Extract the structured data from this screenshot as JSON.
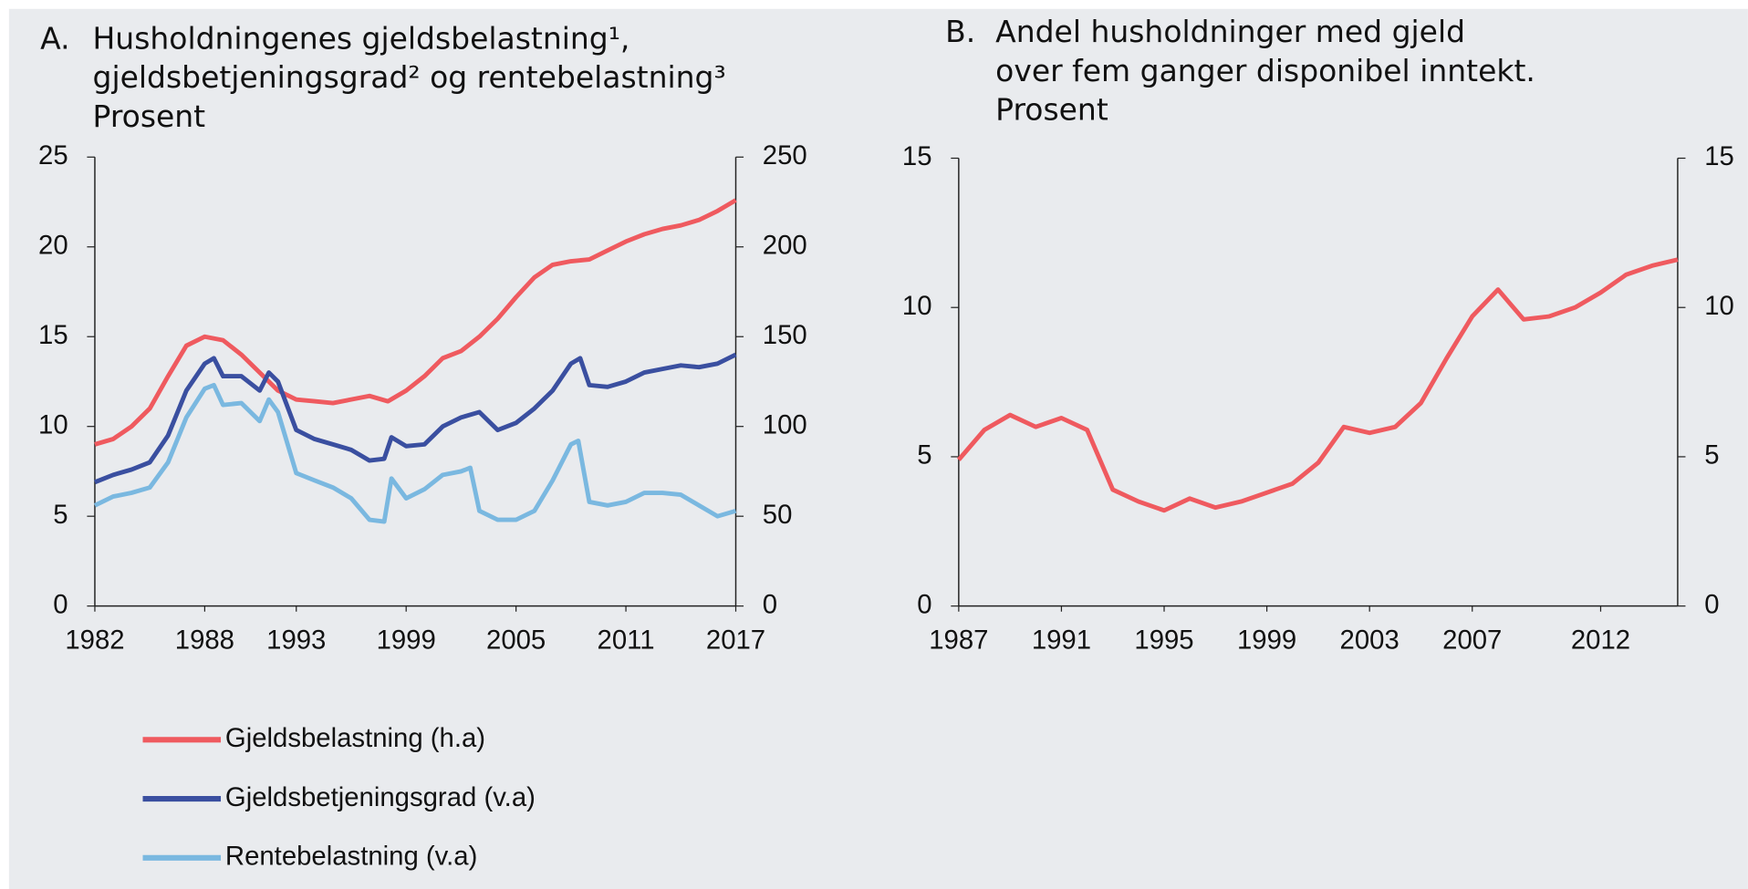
{
  "chart_data": [
    {
      "type": "line",
      "panel": "A.",
      "title": [
        "Husholdningenes gjeldsbelastning¹,",
        "gjeldsbetjeningsgrad² og rentebelastning³",
        "Prosent"
      ],
      "xlim": [
        1982,
        2017
      ],
      "xticks": [
        1982,
        1988,
        1993,
        1999,
        2005,
        2011,
        2017
      ],
      "ylim": [
        0,
        25
      ],
      "yticks": [
        0,
        5,
        10,
        15,
        20,
        25
      ],
      "y2lim": [
        0,
        250
      ],
      "y2ticks": [
        0,
        50,
        100,
        150,
        200,
        250
      ],
      "legend": "bottom",
      "series": [
        {
          "name": "Gjeldsbelastning (h.a)",
          "color": "#ef5a5f",
          "axis": "y2",
          "x": [
            1982,
            1983,
            1984,
            1985,
            1986,
            1987,
            1988,
            1989,
            1990,
            1991,
            1992,
            1993,
            1994,
            1995,
            1996,
            1997,
            1998,
            1999,
            2000,
            2001,
            2002,
            2003,
            2004,
            2005,
            2006,
            2007,
            2008,
            2009,
            2010,
            2011,
            2012,
            2013,
            2014,
            2015,
            2016,
            2017
          ],
          "values": [
            90,
            93,
            100,
            110,
            128,
            145,
            150,
            148,
            140,
            130,
            120,
            115,
            114,
            113,
            115,
            117,
            114,
            120,
            128,
            138,
            142,
            150,
            160,
            172,
            183,
            190,
            192,
            193,
            198,
            203,
            207,
            210,
            212,
            215,
            220,
            226
          ]
        },
        {
          "name": "Gjeldsbetjeningsgrad (v.a)",
          "color": "#3a4fa0",
          "x": [
            1982,
            1983,
            1984,
            1985,
            1986,
            1987,
            1988,
            1988.5,
            1989,
            1990,
            1991,
            1991.5,
            1992,
            1993,
            1994,
            1995,
            1996,
            1997,
            1997.8,
            1998.2,
            1999,
            2000,
            2001,
            2002,
            2003,
            2004,
            2005,
            2006,
            2007,
            2008,
            2008.5,
            2009,
            2010,
            2011,
            2012,
            2013,
            2014,
            2015,
            2016,
            2017
          ],
          "values": [
            6.9,
            7.3,
            7.6,
            8,
            9.5,
            12,
            13.5,
            13.8,
            12.8,
            12.8,
            12,
            13,
            12.5,
            9.8,
            9.3,
            9,
            8.7,
            8.1,
            8.2,
            9.4,
            8.9,
            9,
            10,
            10.5,
            10.8,
            9.8,
            10.2,
            11,
            12,
            13.5,
            13.8,
            12.3,
            12.2,
            12.5,
            13,
            13.2,
            13.4,
            13.3,
            13.5,
            14
          ]
        },
        {
          "name": "Rentebelastning (v.a)",
          "color": "#7ab8e0",
          "x": [
            1982,
            1983,
            1984,
            1985,
            1986,
            1987,
            1988,
            1988.5,
            1989,
            1990,
            1991,
            1991.5,
            1992,
            1993,
            1994,
            1995,
            1996,
            1997,
            1997.8,
            1998.2,
            1999,
            2000,
            2001,
            2002,
            2002.5,
            2003,
            2004,
            2005,
            2006,
            2007,
            2008,
            2008.4,
            2009,
            2010,
            2011,
            2012,
            2013,
            2014,
            2015,
            2016,
            2017
          ],
          "values": [
            5.6,
            6.1,
            6.3,
            6.6,
            8,
            10.5,
            12.1,
            12.3,
            11.2,
            11.3,
            10.3,
            11.5,
            10.8,
            7.4,
            7,
            6.6,
            6,
            4.8,
            4.7,
            7.1,
            6,
            6.5,
            7.3,
            7.5,
            7.7,
            5.3,
            4.8,
            4.8,
            5.3,
            7,
            9,
            9.2,
            5.8,
            5.6,
            5.8,
            6.3,
            6.3,
            6.2,
            5.6,
            5,
            5.3
          ]
        }
      ]
    },
    {
      "type": "line",
      "panel": "B.",
      "title": [
        "Andel husholdninger med gjeld",
        "over fem ganger disponibel inntekt.",
        "Prosent"
      ],
      "xlim": [
        1987,
        2015
      ],
      "xticks": [
        1987,
        1991,
        1995,
        1999,
        2003,
        2007,
        2012
      ],
      "ylim": [
        0,
        15
      ],
      "yticks": [
        0,
        5,
        10,
        15
      ],
      "y2lim": [
        0,
        15
      ],
      "y2ticks": [
        0,
        5,
        10,
        15
      ],
      "series": [
        {
          "color": "#ef5a5f",
          "x": [
            1987,
            1988,
            1989,
            1990,
            1991,
            1992,
            1993,
            1994,
            1995,
            1996,
            1997,
            1998,
            1999,
            2000,
            2001,
            2002,
            2003,
            2004,
            2005,
            2006,
            2007,
            2008,
            2009,
            2010,
            2011,
            2012,
            2013,
            2014,
            2015
          ],
          "values": [
            4.9,
            5.9,
            6.4,
            6.0,
            6.3,
            5.9,
            3.9,
            3.5,
            3.2,
            3.6,
            3.3,
            3.5,
            3.8,
            4.1,
            4.8,
            6.0,
            5.8,
            6.0,
            6.8,
            8.3,
            9.7,
            10.6,
            9.6,
            9.7,
            10.0,
            10.5,
            11.1,
            11.4,
            11.6
          ]
        }
      ]
    }
  ]
}
